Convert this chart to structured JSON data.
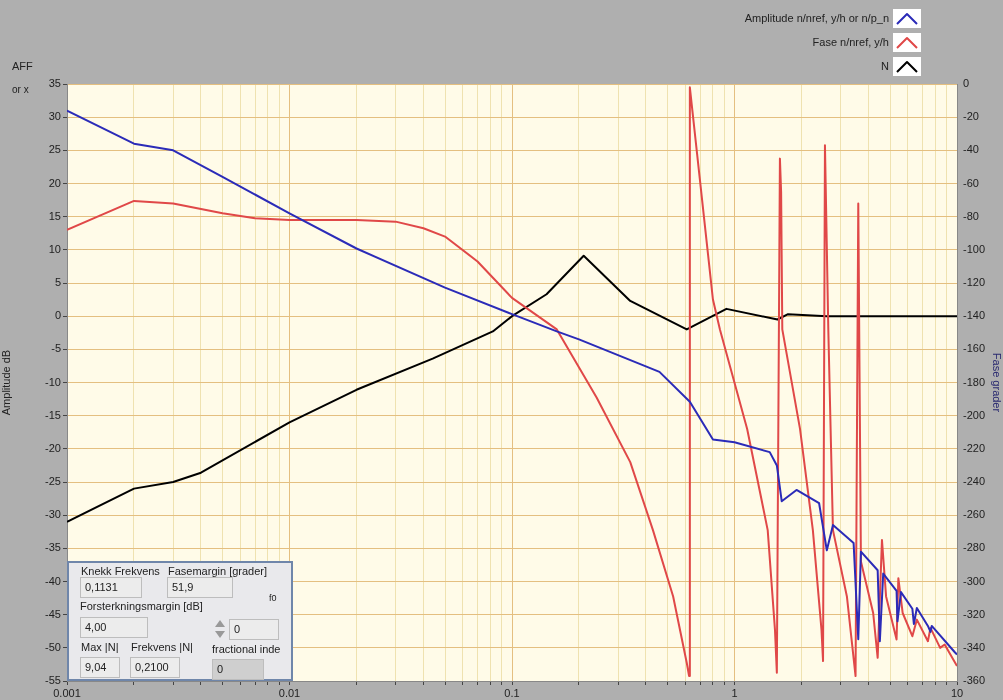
{
  "chart_data": {
    "type": "line",
    "ylabel": "Amplitude dB",
    "y2label": "Fase grader",
    "legend": "top right",
    "grid": true,
    "log": "x",
    "marker": "none",
    "line_style": "solid",
    "xlim": [
      0.001,
      10
    ],
    "xticks": [
      0.001,
      {
        "value": 0.002,
        "label": null
      },
      {
        "value": 0.003,
        "label": null
      },
      {
        "value": 0.004,
        "label": null
      },
      {
        "value": 0.005,
        "label": null
      },
      {
        "value": 0.006,
        "label": null
      },
      {
        "value": 0.007,
        "label": null
      },
      {
        "value": 0.008,
        "label": null
      },
      {
        "value": 0.009,
        "label": null
      },
      0.01,
      {
        "value": 0.02,
        "label": null
      },
      {
        "value": 0.03,
        "label": null
      },
      {
        "value": 0.04,
        "label": null
      },
      {
        "value": 0.05,
        "label": null
      },
      {
        "value": 0.06,
        "label": null
      },
      {
        "value": 0.07,
        "label": null
      },
      {
        "value": 0.08,
        "label": null
      },
      {
        "value": 0.09,
        "label": null
      },
      0.1,
      {
        "value": 0.2,
        "label": null
      },
      {
        "value": 0.3,
        "label": null
      },
      {
        "value": 0.4,
        "label": null
      },
      {
        "value": 0.5,
        "label": null
      },
      {
        "value": 0.6,
        "label": null
      },
      {
        "value": 0.7,
        "label": null
      },
      {
        "value": 0.8,
        "label": null
      },
      {
        "value": 0.9,
        "label": null
      },
      1,
      {
        "value": 2,
        "label": null
      },
      {
        "value": 3,
        "label": null
      },
      {
        "value": 4,
        "label": null
      },
      {
        "value": 5,
        "label": null
      },
      {
        "value": 6,
        "label": null
      },
      {
        "value": 7,
        "label": null
      },
      {
        "value": 8,
        "label": null
      },
      {
        "value": 9,
        "label": null
      },
      10
    ],
    "ylim": [
      -55,
      35
    ],
    "yticks": [
      -55,
      -50,
      -45,
      -40,
      -35,
      -30,
      -25,
      -20,
      -15,
      -10,
      -5,
      0,
      5,
      10,
      15,
      20,
      25,
      30,
      35
    ],
    "y2lim": [
      -360,
      0
    ],
    "y2ticks": [
      -360,
      -340,
      -320,
      -300,
      -280,
      -260,
      -240,
      -220,
      -200,
      -180,
      -160,
      -140,
      -120,
      -100,
      -80,
      -60,
      -40,
      -20,
      0
    ],
    "series": [
      {
        "name": "Amplitude n/nref, y/h or n/p_n",
        "color": "#2b2bb8",
        "x": [
          0.001,
          0.002,
          0.003,
          0.005,
          0.01,
          0.02,
          0.05,
          0.1,
          0.159,
          0.2,
          0.46,
          0.63,
          0.8,
          1.0,
          1.44,
          1.55,
          1.63,
          1.9,
          2.4,
          2.6,
          2.77,
          3.43,
          3.6,
          3.7,
          4.4,
          4.5,
          4.66,
          5.35,
          5.4,
          5.6,
          6.3,
          6.4,
          6.6,
          7.4,
          7.6,
          7.7,
          9.8,
          10
        ],
        "values": [
          31,
          26,
          25,
          21,
          15.5,
          10.2,
          4.3,
          0.3,
          -2.3,
          -3.5,
          -8.4,
          -12.9,
          -18.6,
          -19,
          -20.5,
          -22.5,
          -27.9,
          -26.2,
          -28.2,
          -35.3,
          -31.5,
          -34.2,
          -48.7,
          -35.5,
          -38.3,
          -49,
          -38.8,
          -41.4,
          -46,
          -41.6,
          -44.1,
          -46.4,
          -44,
          -46.7,
          -47.6,
          -46.7,
          -50.7,
          -51
        ]
      },
      {
        "name": "Fase n/nref, y/h",
        "color": "#e04848",
        "axis": "y2",
        "x": [
          0.001,
          0.002,
          0.003,
          0.005,
          0.007,
          0.01,
          0.02,
          0.03,
          0.04,
          0.05,
          0.07,
          0.1,
          0.159,
          0.24,
          0.34,
          0.43,
          0.53,
          0.61,
          0.625,
          0.63,
          0.8,
          0.86,
          1.14,
          1.41,
          1.52,
          1.55,
          1.6,
          1.62,
          1.64,
          1.97,
          2.25,
          2.46,
          2.5,
          2.55,
          2.64,
          2.77,
          3.2,
          3.5,
          3.6,
          3.7,
          4.2,
          4.4,
          4.6,
          4.8,
          5.35,
          5.45,
          5.7,
          6.3,
          6.6,
          7.4,
          7.6,
          8.4,
          8.8,
          10
        ],
        "values": [
          -88,
          -70.5,
          -72,
          -78,
          -81,
          -82,
          -82,
          -83,
          -87,
          -92,
          -107,
          -129,
          -148,
          -189,
          -228,
          -269,
          -309,
          -349,
          -357,
          -2,
          -130,
          -148,
          -208,
          -269,
          -329,
          -355,
          -45,
          -65,
          -148,
          -208,
          -269,
          -329,
          -348,
          -37,
          -148,
          -269,
          -309,
          -357,
          -72,
          -288,
          -319,
          -346,
          -275,
          -309,
          -335,
          -298,
          -319,
          -333,
          -323,
          -336,
          -328,
          -340,
          -338,
          -351
        ]
      },
      {
        "name": "N",
        "color": "#000000",
        "x": [
          0.001,
          0.002,
          0.003,
          0.004,
          0.01,
          0.02,
          0.044,
          0.082,
          0.1,
          0.143,
          0.21,
          0.34,
          0.61,
          0.92,
          1.56,
          1.74,
          2.6,
          10
        ],
        "values": [
          -31,
          -26,
          -25,
          -23.6,
          -16,
          -11.1,
          -6.4,
          -2.3,
          0,
          3.3,
          9.1,
          2.3,
          -2,
          1.1,
          -0.5,
          0.3,
          0,
          0
        ]
      }
    ],
    "annotations": [
      "AFF or x",
      "Knekk Frekvens",
      "Fasemargin [grader]",
      "0,1131",
      "51,9",
      "Forsterkningsmargin [dB]",
      "f0",
      "4,00",
      "0",
      "Max |N|",
      "Frekvens |N|",
      "fractional inde",
      "9,04",
      "0,2100",
      "0"
    ]
  }
}
